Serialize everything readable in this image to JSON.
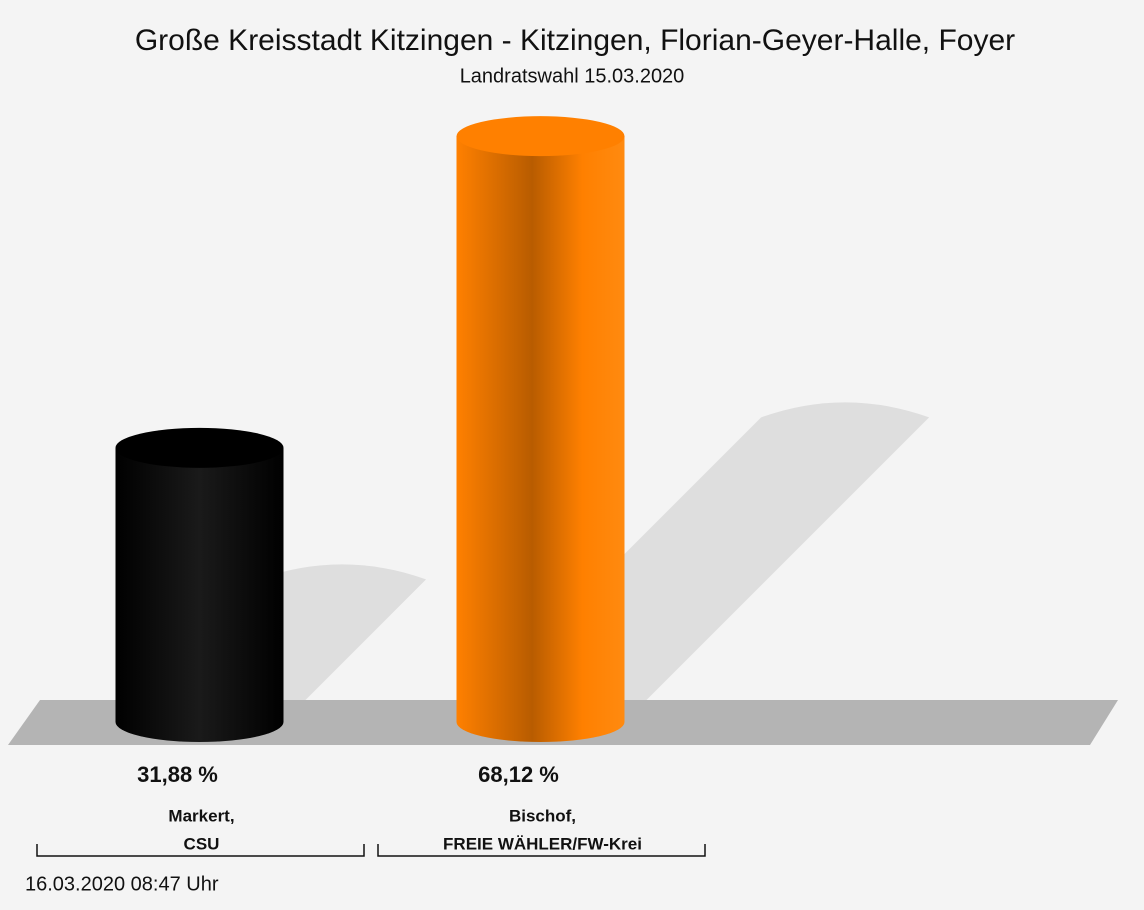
{
  "chart_data": {
    "type": "bar3d",
    "title": "Große Kreisstadt Kitzingen - Kitzingen, Florian-Geyer-Halle, Foyer",
    "subtitle": "Landratswahl 15.03.2020",
    "categories": [
      [
        "Markert,",
        "CSU"
      ],
      [
        "Bischof,",
        "FREIE WÄHLER/FW-Krei"
      ]
    ],
    "values": [
      31.88,
      68.12
    ],
    "value_labels": [
      "31,88 %",
      "68,12 %"
    ],
    "colors": [
      "#000000",
      "#ff8000"
    ],
    "footer": "16.03.2020 08:47 Uhr"
  }
}
